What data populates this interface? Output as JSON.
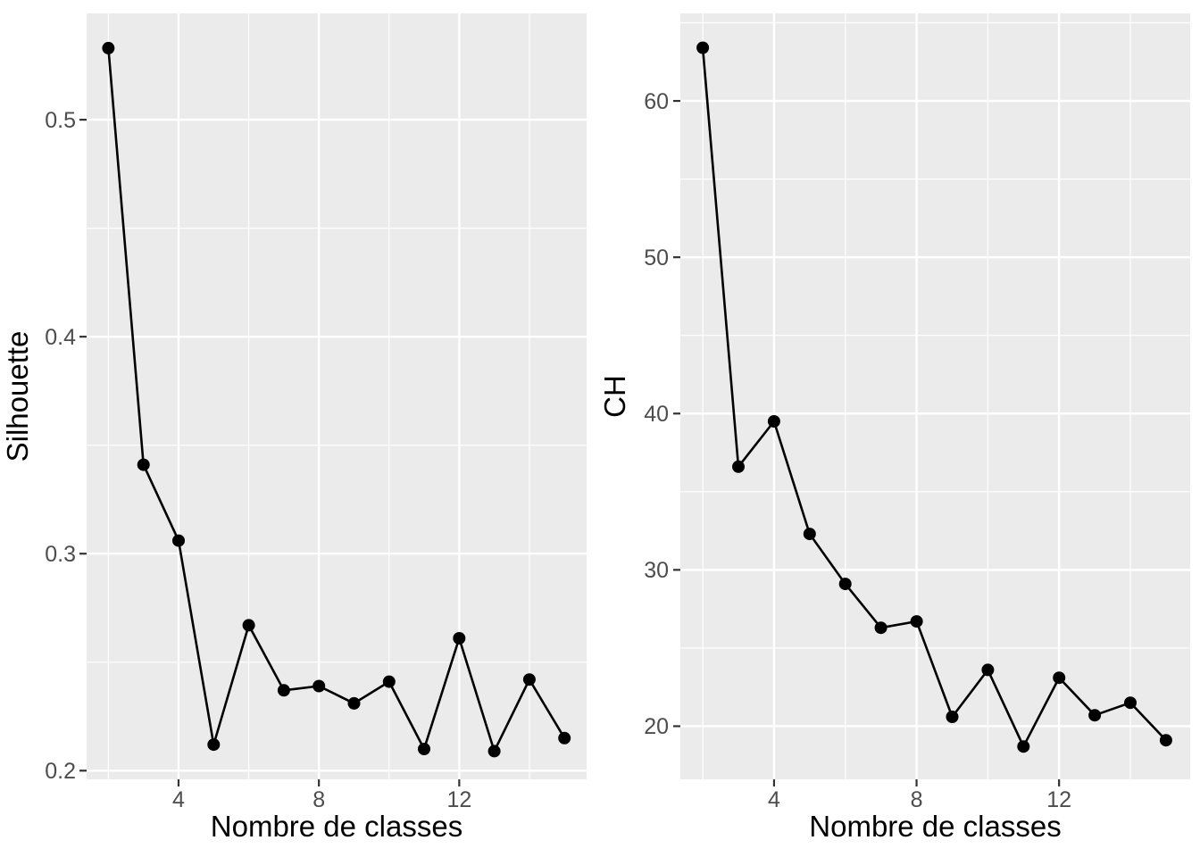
{
  "figure": {
    "background_color": "#FFFFFF",
    "panel_background_color": "#EBEBEB",
    "grid_color": "#FFFFFF",
    "tick_mark_color": "#333333",
    "tick_label_color": "#4D4D4D",
    "axis_title_color": "#000000",
    "series_color": "#000000"
  },
  "chart_data": [
    {
      "type": "line",
      "title": "",
      "xlabel": "Nombre de classes",
      "ylabel": "Silhouette",
      "x": [
        2,
        3,
        4,
        5,
        6,
        7,
        8,
        9,
        10,
        11,
        12,
        13,
        14,
        15
      ],
      "y": [
        0.533,
        0.341,
        0.306,
        0.212,
        0.267,
        0.237,
        0.239,
        0.231,
        0.241,
        0.21,
        0.261,
        0.209,
        0.242,
        0.215
      ],
      "series_name": "Silhouette",
      "marker": "point",
      "x_ticks": [
        4,
        8,
        12
      ],
      "x_tick_labels": [
        "4",
        "8",
        "12"
      ],
      "x_minor_breaks": [
        2,
        6,
        10,
        14
      ],
      "y_ticks": [
        0.2,
        0.3,
        0.4,
        0.5
      ],
      "y_tick_labels": [
        "0.2",
        "0.3",
        "0.4",
        "0.5"
      ],
      "y_minor_breaks": [
        0.25,
        0.35,
        0.45
      ],
      "xlim": [
        1.38,
        15.63
      ],
      "ylim": [
        0.196,
        0.549
      ],
      "grid": "on",
      "legend_position": "none"
    },
    {
      "type": "line",
      "title": "",
      "xlabel": "Nombre de classes",
      "ylabel": "CH",
      "x": [
        2,
        3,
        4,
        5,
        6,
        7,
        8,
        9,
        10,
        11,
        12,
        13,
        14,
        15
      ],
      "y": [
        63.4,
        36.6,
        39.5,
        32.3,
        29.1,
        26.3,
        26.7,
        20.6,
        23.6,
        18.7,
        23.1,
        20.7,
        21.5,
        19.1
      ],
      "series_name": "CH",
      "marker": "point",
      "x_ticks": [
        4,
        8,
        12
      ],
      "x_tick_labels": [
        "4",
        "8",
        "12"
      ],
      "x_minor_breaks": [
        2,
        6,
        10,
        14
      ],
      "y_ticks": [
        20,
        30,
        40,
        50,
        60
      ],
      "y_tick_labels": [
        "20",
        "30",
        "40",
        "50",
        "60"
      ],
      "y_minor_breaks": [
        25,
        35,
        45,
        55,
        65
      ],
      "xlim": [
        1.37,
        15.68
      ],
      "ylim": [
        16.6,
        65.6
      ],
      "grid": "on",
      "legend_position": "none"
    }
  ]
}
